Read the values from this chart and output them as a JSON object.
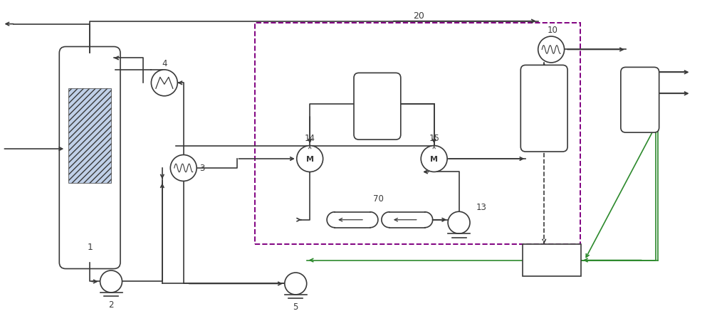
{
  "fig_width": 10.0,
  "fig_height": 4.52,
  "dpi": 100,
  "bg_color": "#ffffff",
  "lc": "#3a3a3a",
  "dlc": "#800080",
  "glc": "#2d8a2d",
  "lw": 1.2
}
